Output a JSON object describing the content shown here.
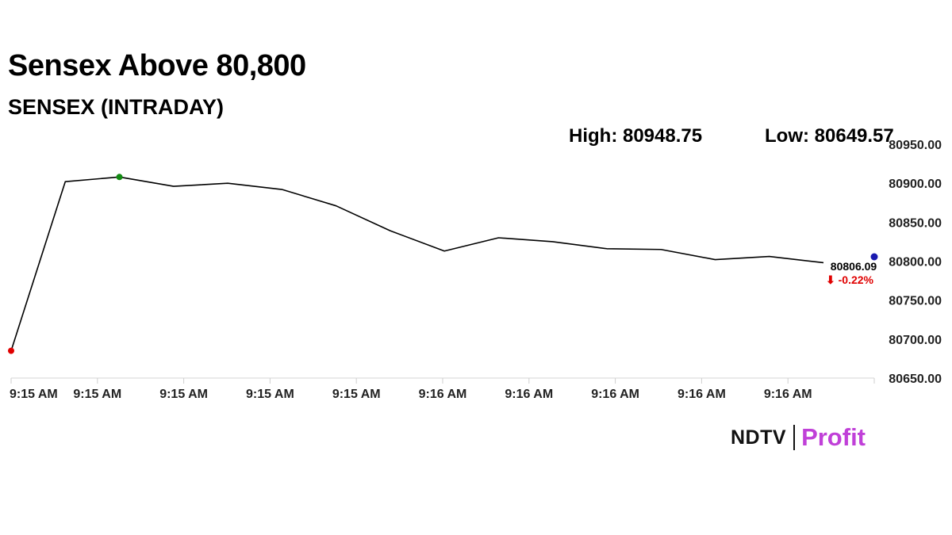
{
  "headline": "Sensex Above 80,800",
  "chart_data": {
    "type": "line",
    "title": "SENSEX (INTRADAY)",
    "high_label": "High: 80948.75",
    "low_label": "Low: 80649.57",
    "x_tick_labels": [
      "9:15 AM",
      "9:15 AM",
      "9:15 AM",
      "9:15 AM",
      "9:15 AM",
      "9:16 AM",
      "9:16 AM",
      "9:16 AM",
      "9:16 AM",
      "9:16 AM"
    ],
    "y_tick_labels": [
      "80650.00",
      "80700.00",
      "80750.00",
      "80800.00",
      "80850.00",
      "80900.00",
      "80950.00"
    ],
    "y_ticks": [
      80650,
      80700,
      80750,
      80800,
      80850,
      80900,
      80950
    ],
    "ylim": [
      80650,
      80950
    ],
    "series": [
      {
        "values": [
          80685,
          80902,
          80908,
          80896,
          80900,
          80892,
          80871,
          80839,
          80813,
          80830,
          80825,
          80816,
          80815,
          80802,
          80806,
          80798
        ],
        "color": "#000000"
      }
    ],
    "low_marker_index": 0,
    "high_marker_index": 2,
    "low_marker_color": "#e00000",
    "high_marker_color": "#128a12",
    "current_marker_color": "#1a1ab0",
    "last_value_label": "80806.09",
    "change_label": "⬇ -0.22%",
    "change_color": "#e00000",
    "grid": false
  },
  "branding": {
    "ndtv": "NDTV",
    "profit": "Profit",
    "accent": "#e00000"
  }
}
